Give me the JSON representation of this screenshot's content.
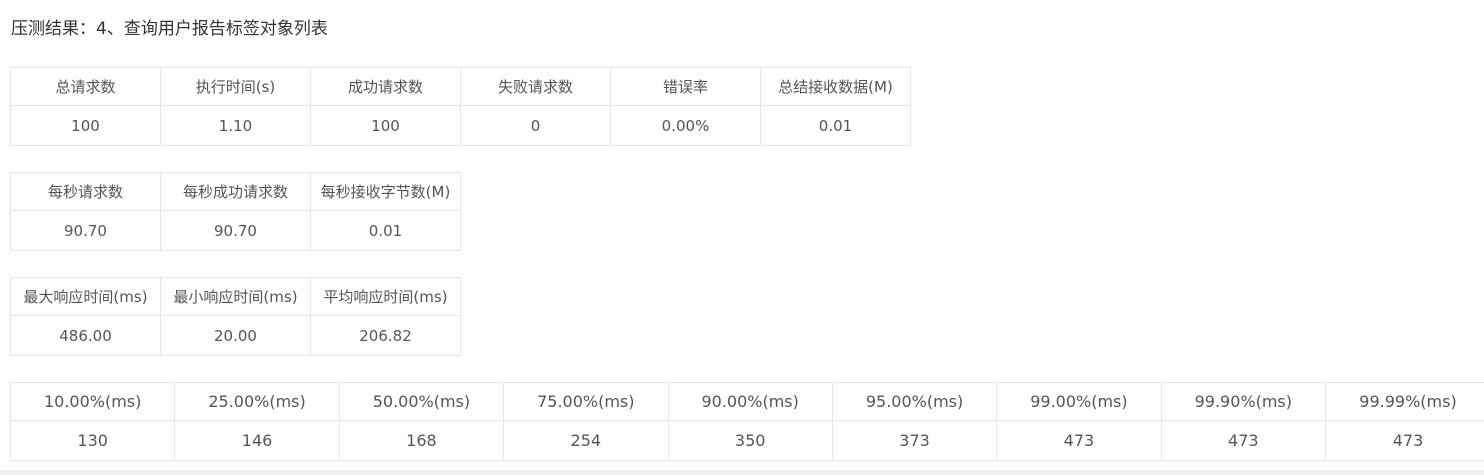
{
  "page_title": "压测结果：4、查询用户报告标签对象列表",
  "summary_table": {
    "headers": [
      "总请求数",
      "执行时间(s)",
      "成功请求数",
      "失败请求数",
      "错误率",
      "总结接收数据(M)"
    ],
    "values": [
      "100",
      "1.10",
      "100",
      "0",
      "0.00%",
      "0.01"
    ]
  },
  "throughput_table": {
    "headers": [
      "每秒请求数",
      "每秒成功请求数",
      "每秒接收字节数(M)"
    ],
    "values": [
      "90.70",
      "90.70",
      "0.01"
    ]
  },
  "response_time_table": {
    "headers": [
      "最大响应时间(ms)",
      "最小响应时间(ms)",
      "平均响应时间(ms)"
    ],
    "values": [
      "486.00",
      "20.00",
      "206.82"
    ]
  },
  "percentile_table": {
    "headers": [
      "10.00%(ms)",
      "25.00%(ms)",
      "50.00%(ms)",
      "75.00%(ms)",
      "90.00%(ms)",
      "95.00%(ms)",
      "99.00%(ms)",
      "99.90%(ms)",
      "99.99%(ms)"
    ],
    "values": [
      "130",
      "146",
      "168",
      "254",
      "350",
      "373",
      "473",
      "473",
      "473"
    ]
  }
}
